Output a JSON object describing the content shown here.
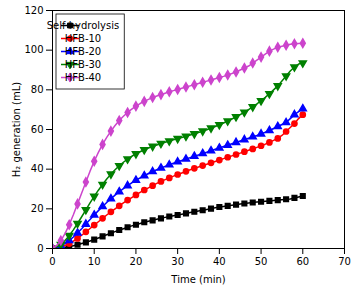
{
  "chart_data": {
    "type": "line",
    "xlabel": "Time (min)",
    "ylabel": "H₂ generation (mL)",
    "xlim": [
      0,
      70
    ],
    "ylim": [
      0,
      120
    ],
    "xticks": [
      0,
      10,
      20,
      30,
      40,
      50,
      60,
      70
    ],
    "yticks": [
      0,
      20,
      40,
      60,
      80,
      100,
      120
    ],
    "grid": false,
    "legend": "upper left",
    "x": [
      0,
      1,
      2,
      3,
      4,
      5,
      6,
      7,
      8,
      9,
      10,
      11,
      12,
      13,
      14,
      15,
      16,
      17,
      18,
      19,
      20,
      21,
      22,
      23,
      24,
      25,
      26,
      27,
      28,
      29,
      30,
      31,
      32,
      33,
      34,
      35,
      36,
      37,
      38,
      39,
      40,
      41,
      42,
      43,
      44,
      45,
      46,
      47,
      48,
      49,
      50,
      51,
      52,
      53,
      54,
      55,
      56,
      57,
      58,
      59,
      60
    ],
    "series": [
      {
        "name": "Self hydrolysis",
        "color": "#000000",
        "marker": "square",
        "values": [
          0,
          0.1,
          0.3,
          0.6,
          1.0,
          1.4,
          1.9,
          2.5,
          3.1,
          3.8,
          4.5,
          5.3,
          6.1,
          6.9,
          7.7,
          8.5,
          9.3,
          10.0,
          10.7,
          11.4,
          12.0,
          12.6,
          13.2,
          13.7,
          14.2,
          14.7,
          15.2,
          15.7,
          16.1,
          16.5,
          16.9,
          17.3,
          17.7,
          18.1,
          18.5,
          18.9,
          19.3,
          19.7,
          20.1,
          20.5,
          20.9,
          21.2,
          21.5,
          21.8,
          22.1,
          22.4,
          22.7,
          23.0,
          23.2,
          23.4,
          23.6,
          23.8,
          24.0,
          24.2,
          24.4,
          24.6,
          24.8,
          25.0,
          25.5,
          26.0,
          26.5
        ]
      },
      {
        "name": "HFB-10",
        "color": "#ff0000",
        "marker": "circle",
        "values": [
          0,
          0.3,
          0.8,
          1.5,
          2.5,
          3.7,
          5.1,
          6.7,
          8.4,
          10.1,
          11.8,
          13.5,
          15.2,
          16.9,
          18.5,
          20.0,
          21.5,
          23.0,
          24.4,
          25.7,
          27.0,
          28.3,
          29.5,
          30.6,
          31.7,
          32.8,
          33.8,
          34.7,
          35.6,
          36.5,
          37.3,
          38.1,
          38.9,
          39.7,
          40.4,
          41.1,
          41.8,
          42.5,
          43.2,
          43.9,
          44.6,
          45.3,
          46.0,
          46.7,
          47.4,
          48.1,
          48.8,
          49.5,
          50.2,
          51.0,
          51.8,
          52.6,
          53.5,
          54.5,
          55.5,
          57.0,
          59.0,
          61.0,
          63.0,
          65.5,
          67.5
        ]
      },
      {
        "name": "HFB-20",
        "color": "#0000ff",
        "marker": "triangle-up",
        "values": [
          0,
          0.5,
          1.3,
          2.5,
          4.0,
          5.8,
          7.8,
          10.0,
          12.3,
          14.6,
          16.9,
          19.1,
          21.2,
          23.2,
          25.1,
          26.9,
          28.6,
          30.2,
          31.7,
          33.1,
          34.4,
          35.6,
          36.7,
          37.8,
          38.8,
          39.7,
          40.6,
          41.4,
          42.2,
          43.0,
          43.7,
          44.4,
          45.1,
          45.8,
          46.5,
          47.2,
          47.9,
          48.6,
          49.3,
          50.0,
          50.7,
          51.4,
          52.1,
          52.8,
          53.5,
          54.2,
          54.9,
          55.6,
          56.3,
          57.0,
          57.8,
          58.6,
          59.5,
          60.5,
          61.5,
          62.5,
          63.5,
          65.5,
          67.5,
          69.0,
          70.5
        ]
      },
      {
        "name": "HFB-30",
        "color": "#008000",
        "marker": "triangle-down",
        "values": [
          0,
          0.8,
          2.0,
          4.0,
          6.5,
          9.4,
          12.6,
          16.0,
          19.5,
          23.0,
          26.3,
          29.4,
          32.3,
          35.0,
          37.5,
          39.7,
          41.7,
          43.5,
          45.1,
          46.5,
          47.7,
          48.8,
          49.8,
          50.7,
          51.5,
          52.2,
          52.9,
          53.6,
          54.2,
          54.8,
          55.4,
          56.0,
          56.6,
          57.2,
          57.8,
          58.5,
          59.2,
          59.9,
          60.7,
          61.5,
          62.4,
          63.3,
          64.3,
          65.3,
          66.4,
          67.5,
          68.7,
          70.0,
          71.4,
          72.9,
          74.5,
          76.2,
          78.0,
          80.0,
          82.0,
          84.5,
          87.0,
          89.5,
          91.5,
          93.0,
          93.5
        ]
      },
      {
        "name": "HFB-40",
        "color": "#cc44cc",
        "marker": "diamond",
        "values": [
          0,
          1.5,
          4.0,
          7.5,
          12.0,
          17.0,
          22.5,
          28.0,
          33.5,
          39.0,
          44.0,
          48.5,
          52.5,
          56.0,
          59.2,
          62.0,
          64.5,
          66.7,
          68.6,
          70.3,
          71.8,
          73.1,
          74.2,
          75.2,
          76.1,
          76.9,
          77.6,
          78.3,
          79.0,
          79.6,
          80.2,
          80.8,
          81.4,
          82.0,
          82.6,
          83.2,
          83.8,
          84.4,
          85.0,
          85.6,
          86.2,
          86.8,
          87.5,
          88.2,
          89.0,
          90.0,
          91.0,
          92.0,
          93.5,
          95.0,
          96.5,
          98.0,
          99.5,
          100.5,
          101.5,
          102.0,
          102.5,
          103.0,
          103.2,
          103.4,
          103.5
        ]
      }
    ]
  }
}
